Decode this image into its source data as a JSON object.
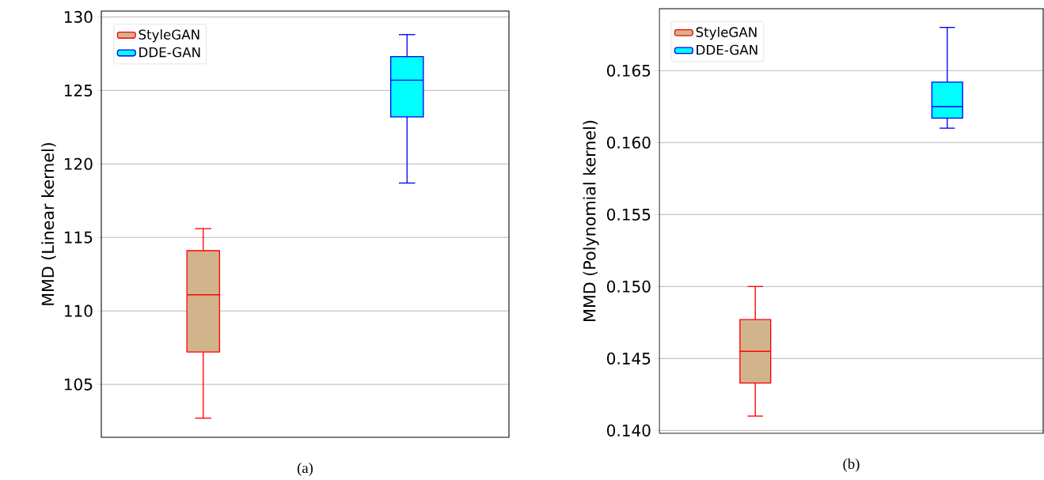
{
  "chart_data": [
    {
      "type": "box",
      "categories": [
        null,
        null
      ],
      "ylabel": "MMD (Linear kernel)",
      "ylim": [
        101.4,
        130.4
      ],
      "yticks": [
        105,
        110,
        115,
        120,
        125,
        130
      ],
      "grid": "y",
      "legend": "top left",
      "tick_labels": "y",
      "annotations": [
        "(a)"
      ],
      "series": [
        {
          "name": "StyleGAN",
          "color": "#ff0000",
          "colors": [
            "#d2b48c",
            null
          ],
          "boxes": [
            {
              "low": 102.7,
              "q1": 107.2,
              "median": 111.1,
              "q3": 114.1,
              "high": 115.6
            },
            null
          ]
        },
        {
          "name": "DDE-GAN",
          "color": "#0000ff",
          "colors": [
            null,
            "#00ffff"
          ],
          "boxes": [
            null,
            {
              "low": 118.7,
              "q1": 123.2,
              "median": 125.7,
              "q3": 127.3,
              "high": 128.8
            }
          ]
        }
      ]
    },
    {
      "type": "box",
      "categories": [
        null,
        null
      ],
      "ylabel": "MMD (Polynomial kernel)",
      "ylim": [
        0.1398,
        0.1693
      ],
      "yticks": [
        {
          "value": 0.14,
          "label": "0.140"
        },
        0.145,
        {
          "value": 0.15,
          "label": "0.150"
        },
        0.155,
        {
          "value": 0.16,
          "label": "0.160"
        },
        0.165
      ],
      "grid": "y",
      "legend": "top left",
      "tick_labels": "y",
      "annotations": [
        "(b)"
      ],
      "series": [
        {
          "name": "StyleGAN",
          "color": "#ff0000",
          "colors": [
            "#d2b48c",
            null
          ],
          "boxes": [
            {
              "low": 0.141,
              "q1": 0.1433,
              "median": 0.1455,
              "q3": 0.1477,
              "high": 0.15
            },
            null
          ]
        },
        {
          "name": "DDE-GAN",
          "color": "#0000ff",
          "colors": [
            null,
            "#00ffff"
          ],
          "boxes": [
            null,
            {
              "low": 0.161,
              "q1": 0.1617,
              "median": 0.1625,
              "q3": 0.1642,
              "high": 0.168
            }
          ]
        }
      ]
    }
  ]
}
